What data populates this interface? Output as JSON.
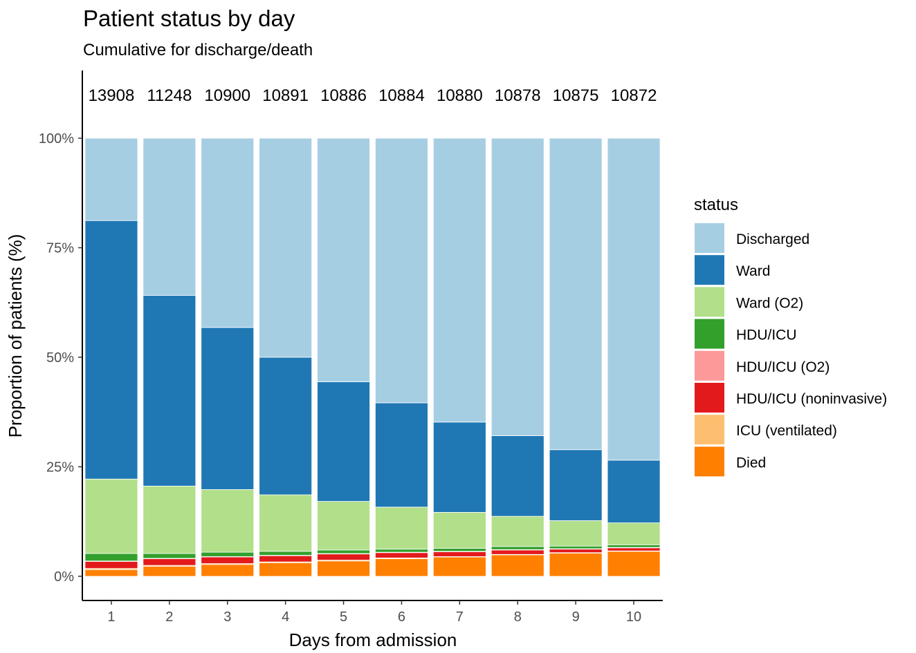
{
  "chart_data": {
    "type": "bar",
    "stacked": true,
    "title": "Patient status by day",
    "subtitle": "Cumulative for discharge/death",
    "xlabel": "Days from admission",
    "ylabel": "Proportion of patients (%)",
    "categories": [
      "1",
      "2",
      "3",
      "4",
      "5",
      "6",
      "7",
      "8",
      "9",
      "10"
    ],
    "counts": [
      "13908",
      "11248",
      "10900",
      "10891",
      "10886",
      "10884",
      "10880",
      "10878",
      "10875",
      "10872"
    ],
    "yticks": [
      "0%",
      "25%",
      "50%",
      "75%",
      "100%"
    ],
    "ylim": [
      0,
      100
    ],
    "legend_title": "status",
    "legend_position": "right",
    "grid": false,
    "series": [
      {
        "name": "Died",
        "color": "#FF7F00",
        "values": [
          1.5,
          2.3,
          2.7,
          3.1,
          3.5,
          4.0,
          4.4,
          4.9,
          5.3,
          5.7
        ]
      },
      {
        "name": "ICU (ventilated)",
        "color": "#FDBF6F",
        "values": [
          0.3,
          0.2,
          0.2,
          0.2,
          0.2,
          0.2,
          0.1,
          0.1,
          0.1,
          0.1
        ]
      },
      {
        "name": "HDU/ICU (noninvasive)",
        "color": "#E31A1C",
        "values": [
          1.6,
          1.5,
          1.5,
          1.4,
          1.4,
          1.2,
          1.1,
          1.0,
          0.8,
          0.7
        ]
      },
      {
        "name": "HDU/ICU (O2)",
        "color": "#FB9A99",
        "values": [
          0.1,
          0.1,
          0.1,
          0.1,
          0.1,
          0.1,
          0.1,
          0.1,
          0.1,
          0.1
        ]
      },
      {
        "name": "HDU/ICU",
        "color": "#33A02C",
        "values": [
          1.7,
          1.1,
          1.0,
          0.9,
          0.8,
          0.7,
          0.7,
          0.7,
          0.6,
          0.6
        ]
      },
      {
        "name": "Ward (O2)",
        "color": "#B2DF8A",
        "values": [
          17.0,
          15.4,
          14.3,
          12.9,
          11.1,
          9.6,
          8.2,
          6.9,
          5.8,
          5.0
        ]
      },
      {
        "name": "Ward",
        "color": "#1F78B4",
        "values": [
          59.0,
          43.5,
          37.0,
          31.4,
          27.3,
          23.8,
          20.6,
          18.4,
          16.2,
          14.3
        ]
      },
      {
        "name": "Discharged",
        "color": "#A6CEE3",
        "values": [
          18.8,
          35.9,
          43.2,
          50.0,
          55.6,
          60.4,
          64.8,
          67.9,
          71.1,
          73.5
        ]
      }
    ],
    "legend_order": [
      "Discharged",
      "Ward",
      "Ward (O2)",
      "HDU/ICU",
      "HDU/ICU (O2)",
      "HDU/ICU (noninvasive)",
      "ICU (ventilated)",
      "Died"
    ]
  }
}
